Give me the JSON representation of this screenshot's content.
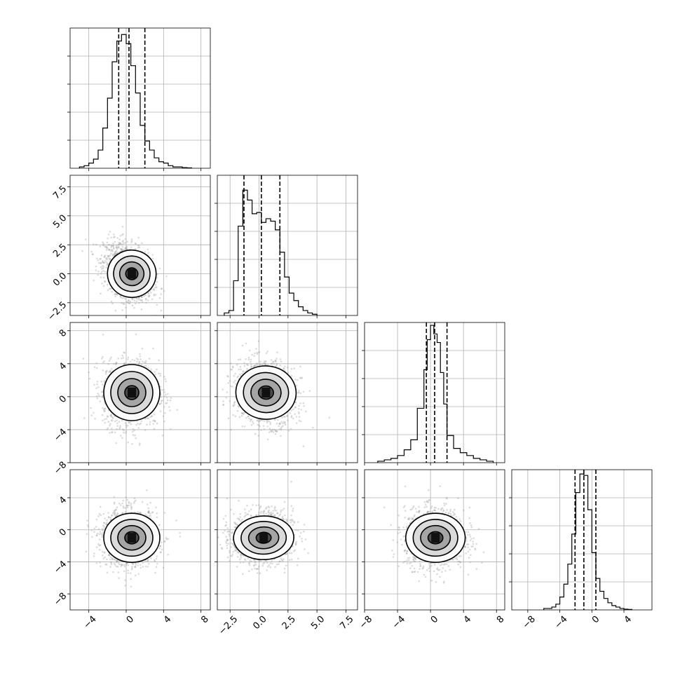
{
  "chart_data": {
    "type": "corner",
    "variables": 4,
    "grid": true,
    "axes": {
      "x0": {
        "range": [
          -6,
          9
        ],
        "ticks": [
          -4,
          0,
          4,
          8
        ],
        "tick_labels": [
          "−4",
          "0",
          "4",
          "8"
        ]
      },
      "x1": {
        "range": [
          -3.6,
          8.5
        ],
        "ticks": [
          -2.5,
          0.0,
          2.5,
          5.0,
          7.5
        ],
        "tick_labels": [
          "−2.5",
          "0.0",
          "2.5",
          "5.0",
          "7.5"
        ]
      },
      "x2": {
        "range": [
          -8,
          9
        ],
        "ticks": [
          -8,
          -4,
          0,
          4,
          8
        ],
        "tick_labels": [
          "−8",
          "−4",
          "0",
          "4",
          "8"
        ]
      },
      "x3": {
        "range": [
          -10,
          7.5
        ],
        "ticks": [
          -8,
          -4,
          0,
          4
        ],
        "tick_labels": [
          "−8",
          "−4",
          "0",
          "4"
        ]
      }
    },
    "row_ticks": {
      "r1": {
        "ticks": [
          -2.5,
          0.0,
          2.5,
          5.0,
          7.5
        ],
        "tick_labels": [
          "−2.5",
          "0.0",
          "2.5",
          "5.0",
          "7.5"
        ]
      },
      "r2": {
        "ticks": [
          -8,
          -4,
          0,
          4,
          8
        ],
        "tick_labels": [
          "−8",
          "−4",
          "0",
          "4",
          "8"
        ]
      },
      "r3": {
        "ticks": [
          -8,
          -4,
          0,
          4
        ],
        "tick_labels": [
          "−8",
          "−4",
          "0",
          "4"
        ]
      }
    },
    "histograms": [
      {
        "var": 0,
        "range": [
          -6,
          9
        ],
        "ymax": 1.08,
        "quantiles": [
          -0.8,
          0.3,
          2.0
        ],
        "edges": [
          -5.0,
          -4.5,
          -4.0,
          -3.5,
          -3.0,
          -2.5,
          -2.0,
          -1.5,
          -1.0,
          -0.5,
          0.0,
          0.5,
          1.0,
          1.5,
          2.0,
          2.5,
          3.0,
          3.5,
          4.0,
          4.5,
          5.0,
          5.5,
          6.0,
          6.5,
          7.0
        ],
        "counts": [
          0.01,
          0.02,
          0.04,
          0.07,
          0.14,
          0.31,
          0.54,
          0.82,
          0.98,
          1.03,
          0.96,
          0.79,
          0.58,
          0.33,
          0.21,
          0.14,
          0.08,
          0.05,
          0.04,
          0.02,
          0.01,
          0.01,
          0.005,
          0.003
        ]
      },
      {
        "var": 1,
        "range": [
          -3.6,
          8.5
        ],
        "ymax": 1.13,
        "quantiles": [
          -1.3,
          0.2,
          1.8
        ],
        "edges": [
          -3.0,
          -2.6,
          -2.2,
          -1.8,
          -1.4,
          -1.0,
          -0.6,
          -0.2,
          0.2,
          0.6,
          1.0,
          1.4,
          1.8,
          2.2,
          2.6,
          3.0,
          3.4,
          3.8,
          4.2,
          4.6,
          5.0
        ],
        "counts": [
          0.02,
          0.04,
          0.28,
          0.72,
          1.01,
          0.93,
          0.82,
          0.83,
          0.75,
          0.78,
          0.76,
          0.69,
          0.51,
          0.31,
          0.18,
          0.12,
          0.07,
          0.04,
          0.02,
          0.01
        ]
      },
      {
        "var": 2,
        "range": [
          -8,
          9
        ],
        "ymax": 0.98,
        "quantiles": [
          -0.5,
          0.5,
          2.0
        ],
        "edges": [
          -6.4,
          -5.6,
          -4.8,
          -4.0,
          -3.2,
          -2.4,
          -1.6,
          -0.8,
          -0.4,
          0.0,
          0.4,
          0.8,
          1.2,
          1.6,
          2.0,
          2.8,
          3.6,
          4.4,
          5.2,
          6.0,
          6.8,
          7.6
        ],
        "counts": [
          0.01,
          0.02,
          0.03,
          0.05,
          0.09,
          0.16,
          0.38,
          0.65,
          0.86,
          0.96,
          0.9,
          0.84,
          0.63,
          0.41,
          0.19,
          0.1,
          0.07,
          0.05,
          0.03,
          0.02,
          0.01
        ]
      },
      {
        "var": 3,
        "range": [
          -10,
          7.5
        ],
        "ymax": 0.98,
        "quantiles": [
          -2.1,
          -1.0,
          0.5
        ],
        "edges": [
          -6.0,
          -5.0,
          -4.5,
          -4.0,
          -3.5,
          -3.0,
          -2.5,
          -2.0,
          -1.5,
          -1.0,
          -0.5,
          0.0,
          0.5,
          1.0,
          1.5,
          2.0,
          2.5,
          3.0,
          3.5,
          4.0,
          4.5,
          5.0
        ],
        "counts": [
          0.01,
          0.02,
          0.04,
          0.09,
          0.18,
          0.32,
          0.53,
          0.82,
          0.95,
          0.94,
          0.7,
          0.4,
          0.22,
          0.13,
          0.08,
          0.05,
          0.03,
          0.02,
          0.01,
          0.005,
          0.003
        ]
      }
    ],
    "scatter_panels": [
      {
        "x": 0,
        "y": 1,
        "mean": [
          0.2,
          0.2
        ],
        "sd": [
          1.3,
          1.2
        ],
        "rho": -0.35,
        "contour_center": [
          0.6,
          0.0
        ]
      },
      {
        "x": 0,
        "y": 2,
        "mean": [
          0.5,
          0.4
        ],
        "sd": [
          1.5,
          2.0
        ],
        "rho": 0.0,
        "contour_center": [
          0.6,
          0.5
        ]
      },
      {
        "x": 1,
        "y": 2,
        "mean": [
          0.5,
          0.4
        ],
        "sd": [
          1.3,
          1.9
        ],
        "rho": -0.15,
        "contour_center": [
          0.6,
          0.5
        ]
      },
      {
        "x": 0,
        "y": 3,
        "mean": [
          0.4,
          -1.0
        ],
        "sd": [
          1.5,
          1.8
        ],
        "rho": 0.0,
        "contour_center": [
          0.6,
          -1.0
        ]
      },
      {
        "x": 1,
        "y": 3,
        "mean": [
          0.3,
          -1.0
        ],
        "sd": [
          1.3,
          1.6
        ],
        "rho": 0.05,
        "contour_center": [
          0.4,
          -1.0
        ]
      },
      {
        "x": 2,
        "y": 3,
        "mean": [
          0.5,
          -1.0
        ],
        "sd": [
          1.8,
          1.8
        ],
        "rho": 0.0,
        "contour_center": [
          0.6,
          -1.0
        ]
      }
    ]
  }
}
